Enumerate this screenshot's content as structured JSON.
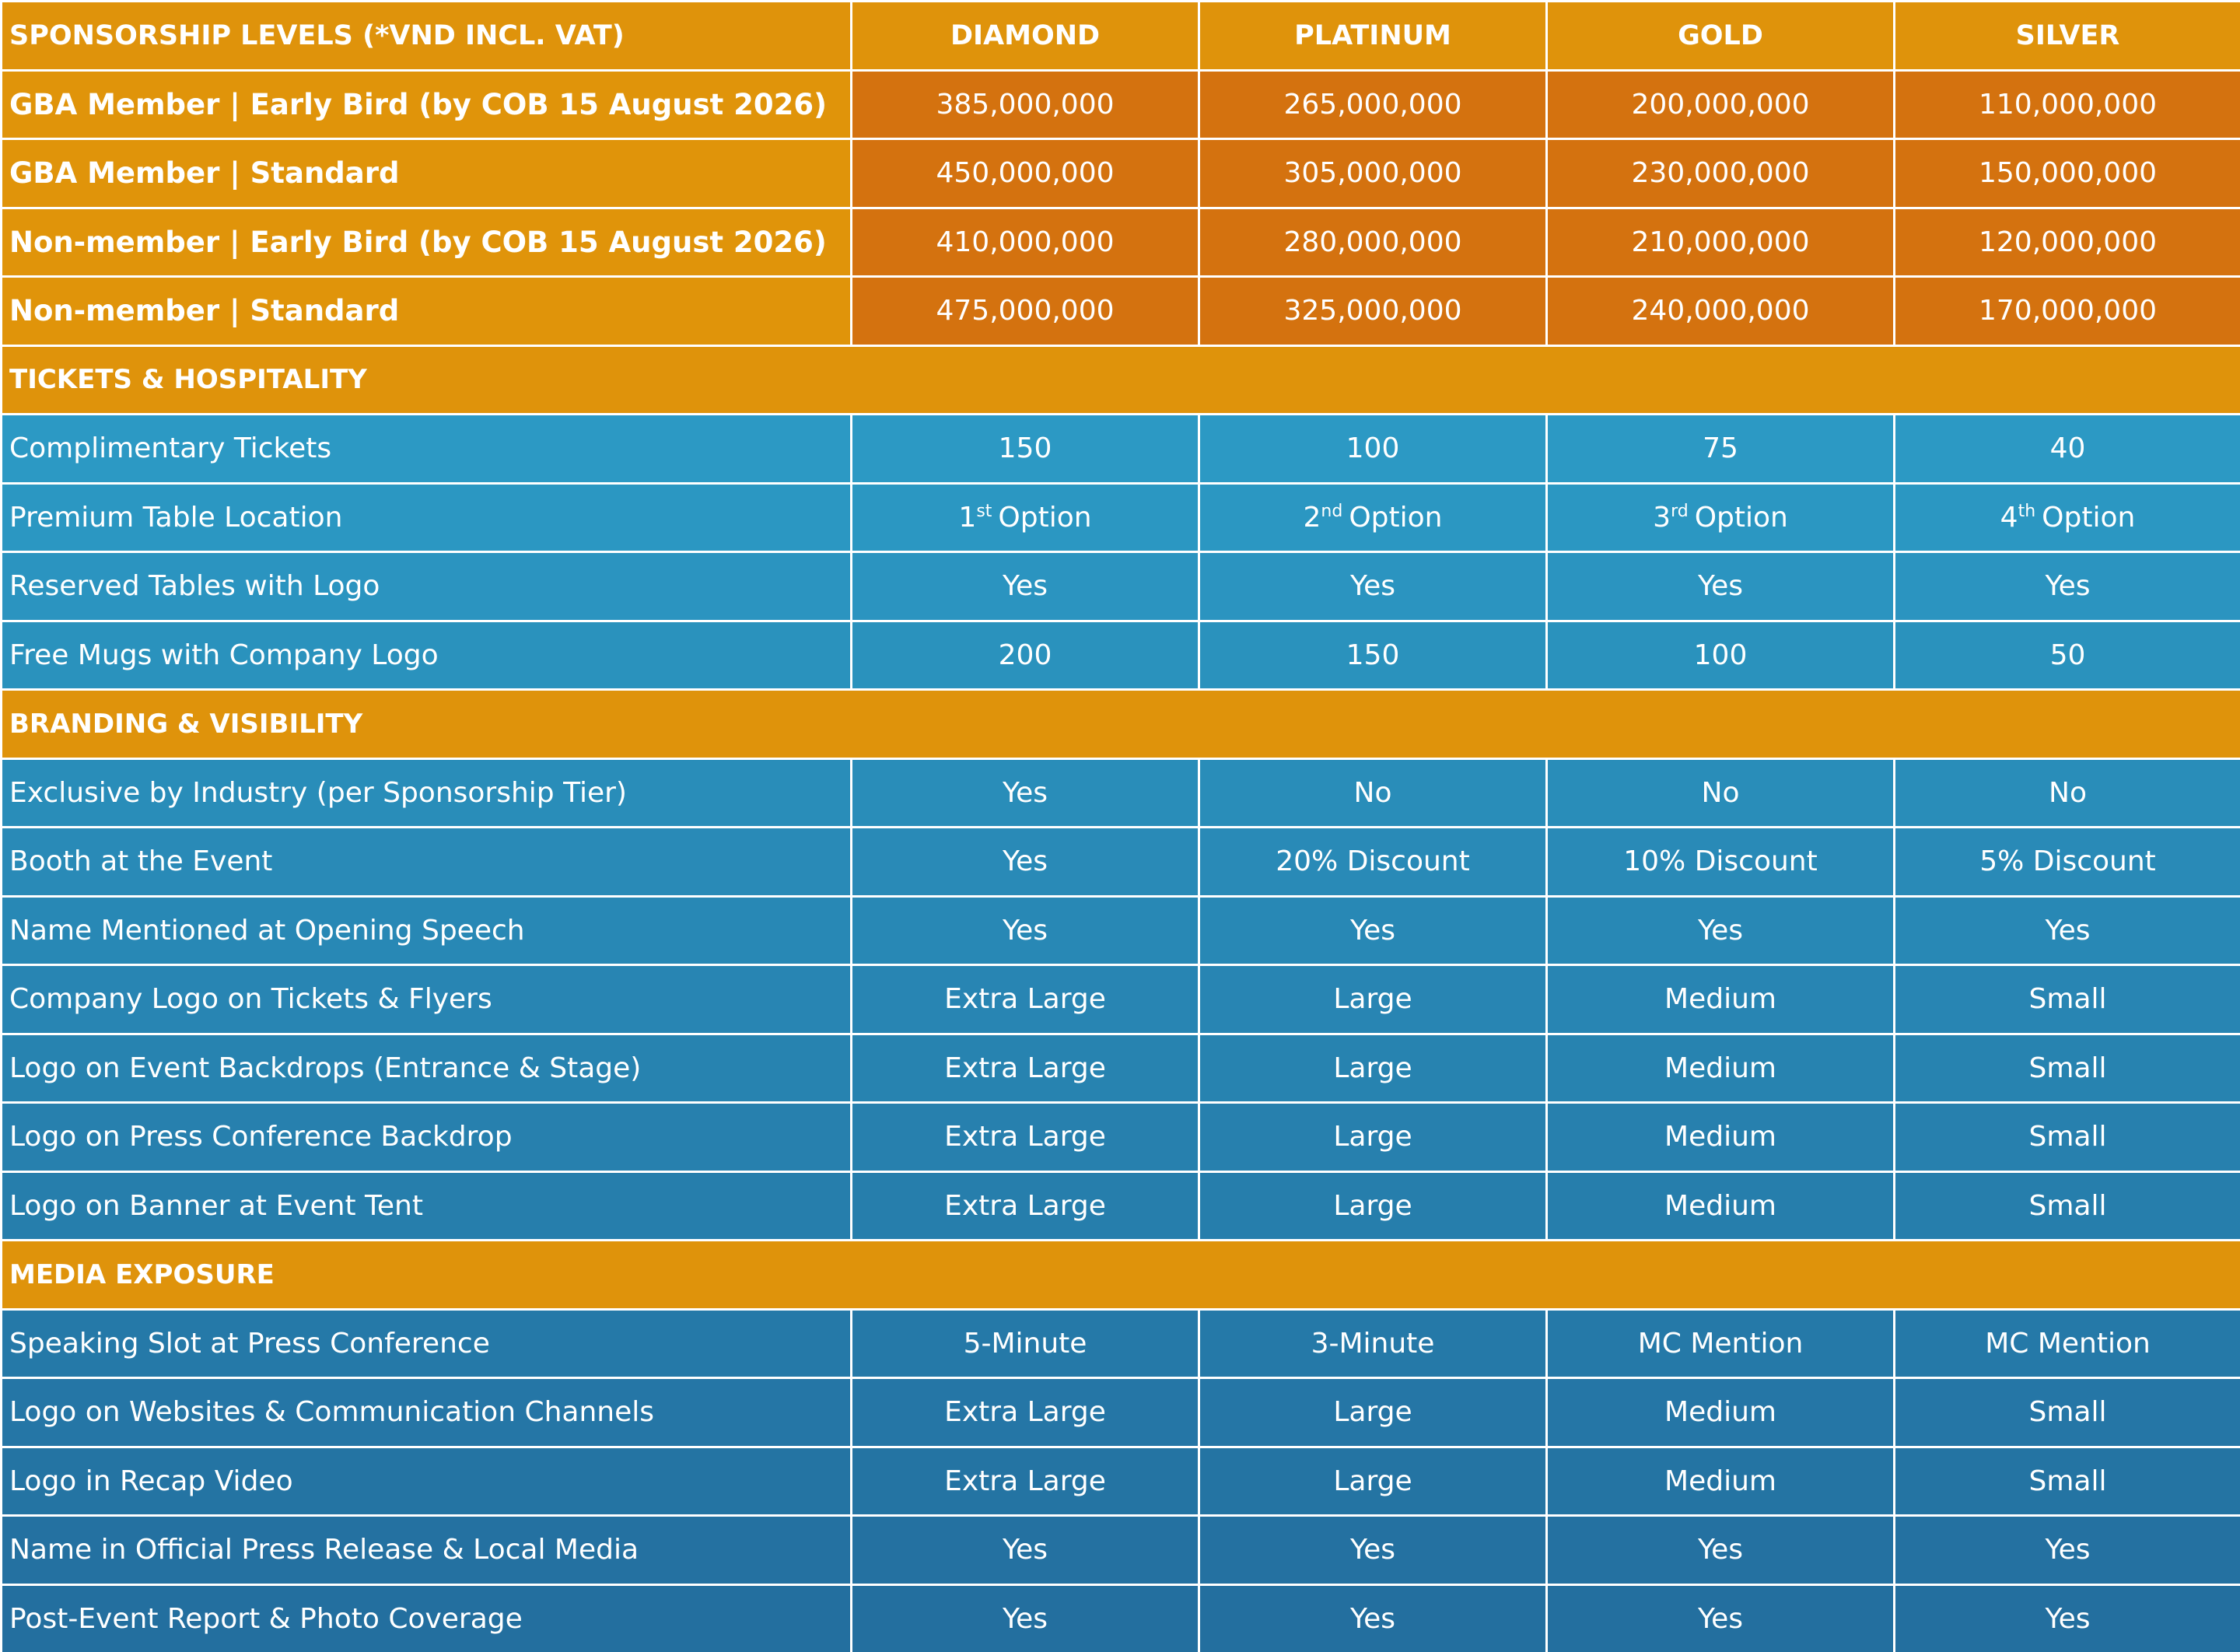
{
  "header": [
    "SPONSORSHIP LEVELS (*VND INCL. VAT)",
    "DIAMOND",
    "PLATINUM",
    "GOLD",
    "SILVER"
  ],
  "pricing": [
    {
      "label": "GBA Member | Early Bird (by COB 15 August 2026)",
      "values": [
        "385,000,000",
        "265,000,000",
        "200,000,000",
        "110,000,000"
      ]
    },
    {
      "label": "GBA Member | Standard",
      "values": [
        "450,000,000",
        "305,000,000",
        "230,000,000",
        "150,000,000"
      ]
    },
    {
      "label": "Non-member | Early Bird (by COB 15 August 2026)",
      "values": [
        "410,000,000",
        "280,000,000",
        "210,000,000",
        "120,000,000"
      ]
    },
    {
      "label": "Non-member | Standard",
      "values": [
        "475,000,000",
        "325,000,000",
        "240,000,000",
        "170,000,000"
      ]
    }
  ],
  "sections": [
    {
      "title": "TICKETS & HOSPITALITY",
      "rows": [
        {
          "label": "Complimentary Tickets",
          "values": [
            "150",
            "100",
            "75",
            "40"
          ]
        },
        {
          "label": "Premium Table Location",
          "values": [
            {
              "n": "1",
              "sup": "st",
              "text": "Option"
            },
            {
              "n": "2",
              "sup": "nd",
              "text": "Option"
            },
            {
              "n": "3",
              "sup": "rd",
              "text": "Option"
            },
            {
              "n": "4",
              "sup": "th",
              "text": "Option"
            }
          ]
        },
        {
          "label": "Reserved Tables with Logo",
          "values": [
            "Yes",
            "Yes",
            "Yes",
            "Yes"
          ]
        },
        {
          "label": "Free Mugs with Company Logo",
          "values": [
            "200",
            "150",
            "100",
            "50"
          ]
        }
      ]
    },
    {
      "title": "BRANDING & VISIBILITY",
      "rows": [
        {
          "label": "Exclusive by Industry (per Sponsorship Tier)",
          "values": [
            "Yes",
            "No",
            "No",
            "No"
          ]
        },
        {
          "label": "Booth at the Event",
          "values": [
            "Yes",
            "20% Discount",
            "10% Discount",
            "5% Discount"
          ]
        },
        {
          "label": "Name Mentioned at Opening Speech",
          "values": [
            "Yes",
            "Yes",
            "Yes",
            "Yes"
          ]
        },
        {
          "label": "Company Logo on Tickets & Flyers",
          "values": [
            "Extra Large",
            "Large",
            "Medium",
            "Small"
          ]
        },
        {
          "label": "Logo on Event Backdrops (Entrance & Stage)",
          "values": [
            "Extra Large",
            "Large",
            "Medium",
            "Small"
          ]
        },
        {
          "label": "Logo on Press Conference Backdrop",
          "values": [
            "Extra Large",
            "Large",
            "Medium",
            "Small"
          ]
        },
        {
          "label": "Logo on Banner at Event Tent",
          "values": [
            "Extra Large",
            "Large",
            "Medium",
            "Small"
          ]
        }
      ]
    },
    {
      "title": "MEDIA EXPOSURE",
      "rows": [
        {
          "label": "Speaking Slot at Press Conference",
          "values": [
            "5-Minute",
            "3-Minute",
            "MC Mention",
            "MC Mention"
          ]
        },
        {
          "label": "Logo on Websites & Communication Channels",
          "values": [
            "Extra Large",
            "Large",
            "Medium",
            "Small"
          ]
        },
        {
          "label": "Logo in Recap Video",
          "values": [
            "Extra Large",
            "Large",
            "Medium",
            "Small"
          ]
        },
        {
          "label": "Name in Official Press Release & Local Media",
          "values": [
            "Yes",
            "Yes",
            "Yes",
            "Yes"
          ]
        },
        {
          "label": "Post-Event Report & Photo Coverage",
          "values": [
            "Yes",
            "Yes",
            "Yes",
            "Yes"
          ]
        }
      ]
    }
  ]
}
